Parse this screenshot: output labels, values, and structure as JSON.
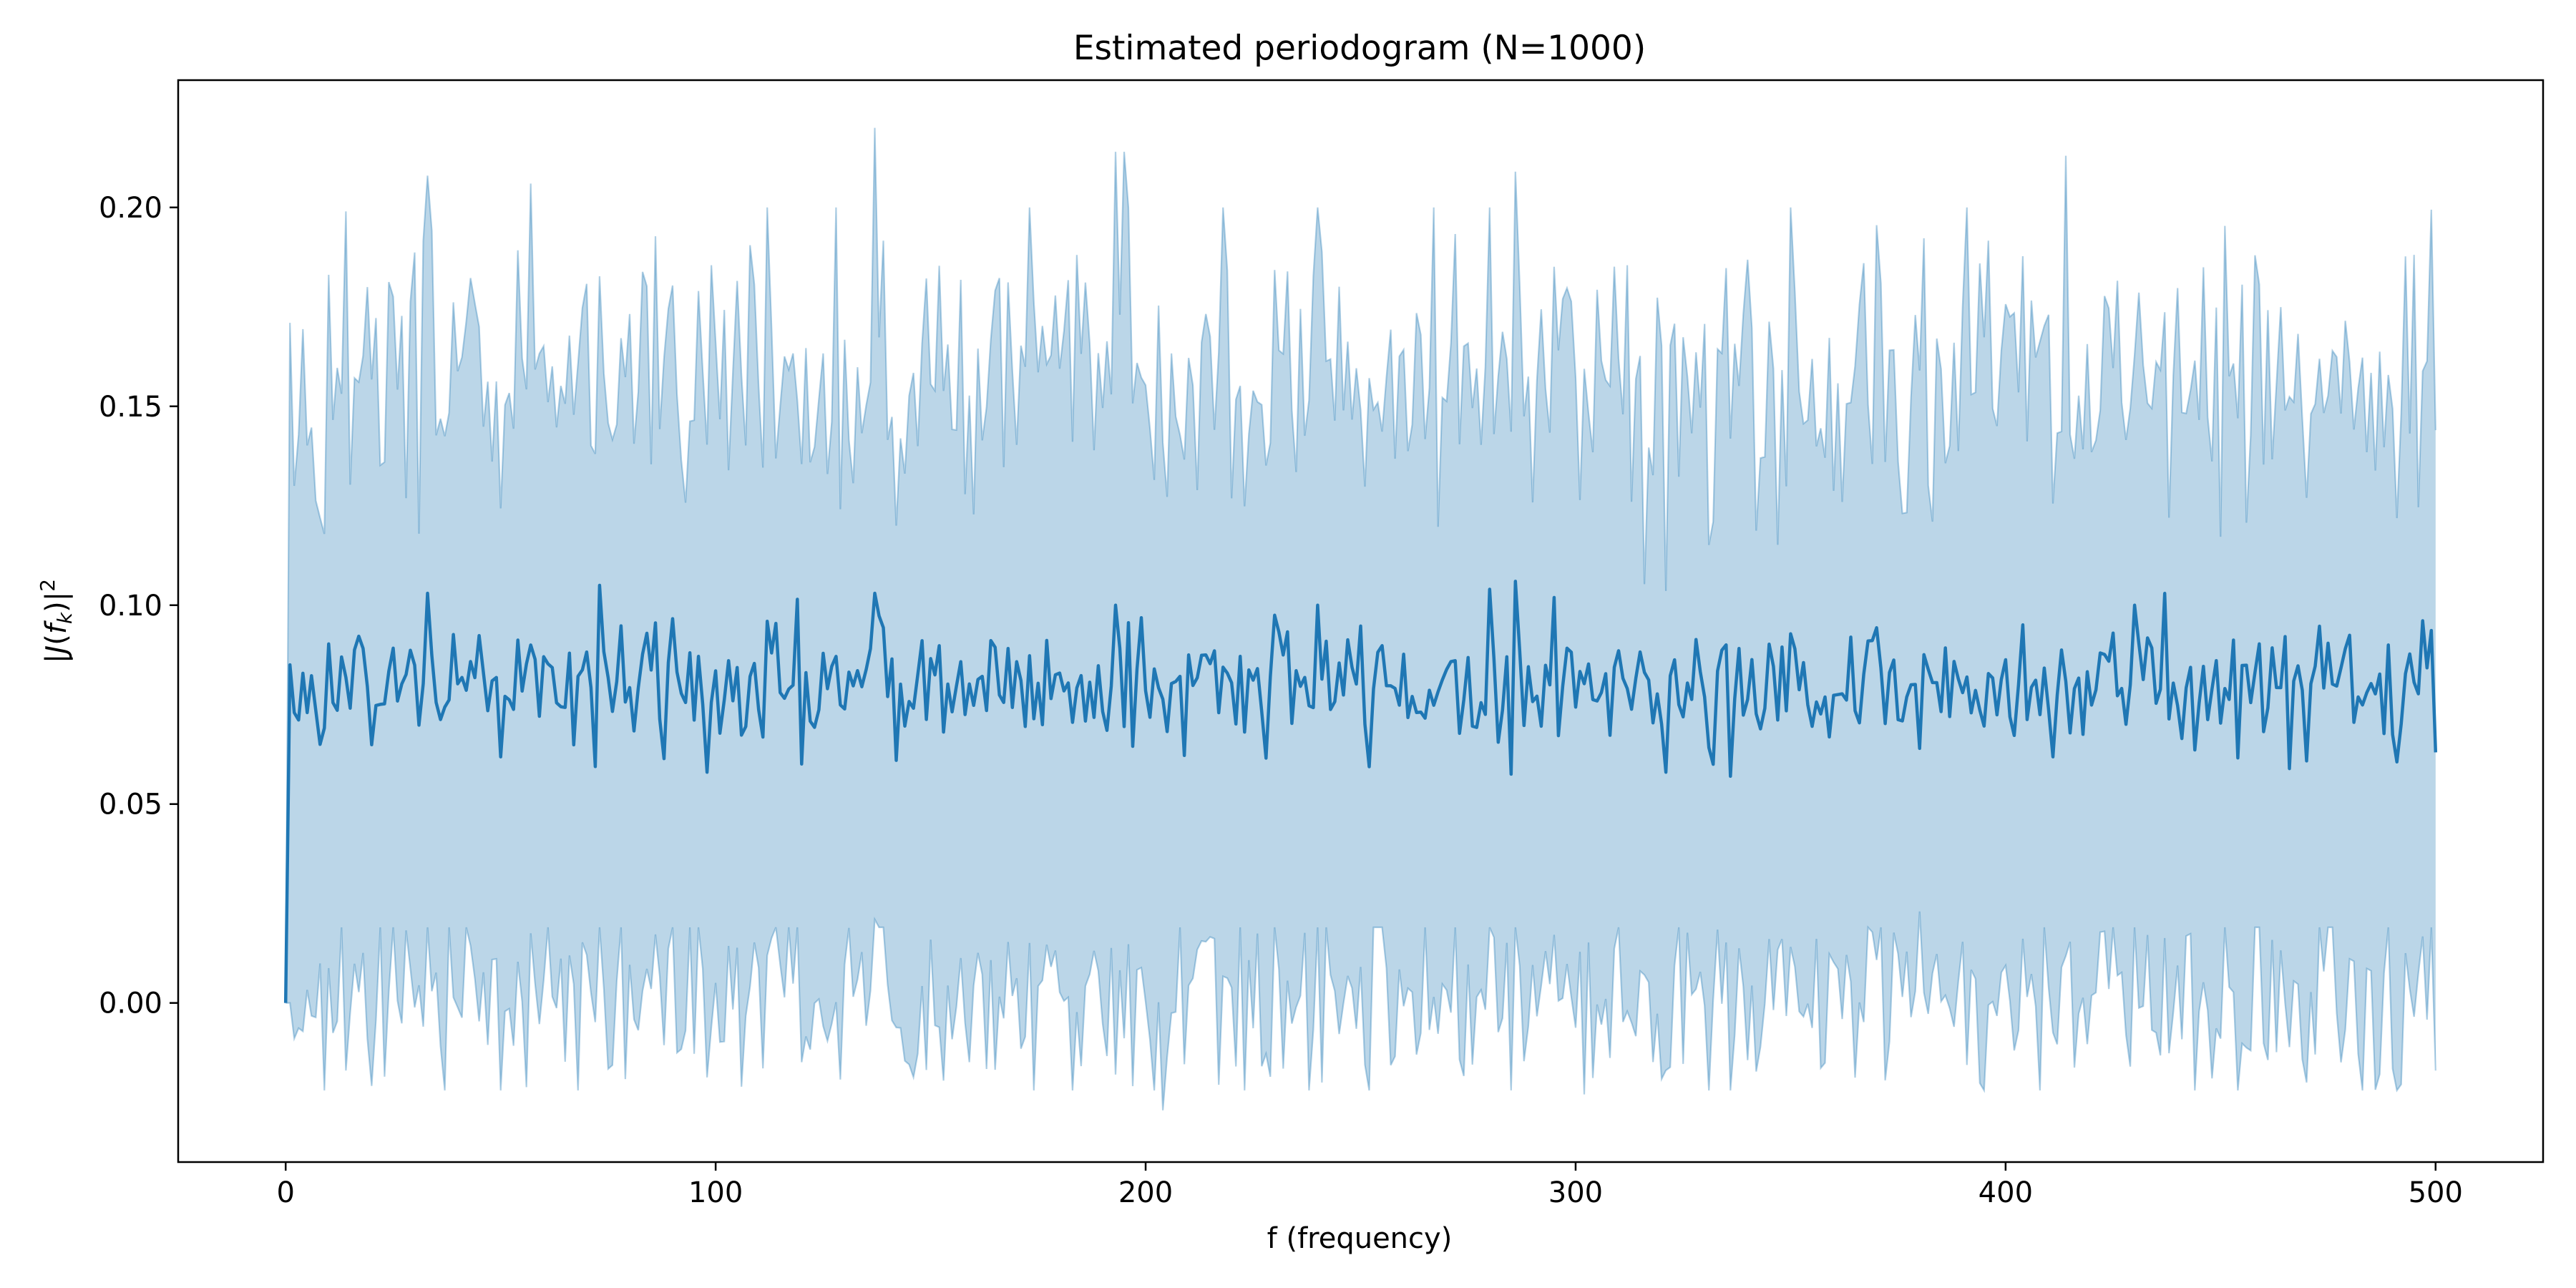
{
  "chart_data": {
    "type": "line",
    "title": "Estimated periodogram (N=1000)",
    "xlabel": "f (frequency)",
    "ylabel": "|J(f_k)|²",
    "ylabel_parts": {
      "prefix": "|",
      "italic_main": "J",
      "paren_open": "(",
      "italic_f": "f",
      "subscript": "k",
      "paren_close": ")|",
      "superscript": "2"
    },
    "xlim": [
      -25,
      525
    ],
    "ylim": [
      -0.04,
      0.232
    ],
    "x_ticks": [
      0,
      100,
      200,
      300,
      400,
      500
    ],
    "x_tick_labels": [
      "0",
      "100",
      "200",
      "300",
      "400",
      "500"
    ],
    "y_ticks": [
      0.0,
      0.05,
      0.1,
      0.15,
      0.2
    ],
    "y_tick_labels": [
      "0.00",
      "0.05",
      "0.10",
      "0.15",
      "0.20"
    ],
    "grid": false,
    "legend": "none",
    "x_range": [
      0,
      500
    ],
    "n_points": 501,
    "series": [
      {
        "kind": "line",
        "color": "#1f77b4",
        "description_mean": 0.08,
        "start_value": 0.0,
        "keypoints": [
          [
            0,
            0.0
          ],
          [
            1,
            0.085
          ],
          [
            2,
            0.073
          ],
          [
            5,
            0.073
          ],
          [
            8,
            0.065
          ],
          [
            33,
            0.103
          ],
          [
            57,
            0.09
          ],
          [
            73,
            0.105
          ],
          [
            98,
            0.058
          ],
          [
            137,
            0.103
          ],
          [
            142,
            0.061
          ],
          [
            193,
            0.1
          ],
          [
            240,
            0.1
          ],
          [
            286,
            0.106
          ],
          [
            332,
            0.06
          ],
          [
            380,
            0.064
          ],
          [
            430,
            0.1
          ],
          [
            500,
            0.063
          ]
        ]
      },
      {
        "kind": "band",
        "color": "#1f77b4",
        "opacity": 0.3,
        "upper_keypoints": [
          [
            0,
            0.0
          ],
          [
            1,
            0.171
          ],
          [
            2,
            0.13
          ],
          [
            8,
            0.122
          ],
          [
            14,
            0.199
          ],
          [
            33,
            0.208
          ],
          [
            57,
            0.206
          ],
          [
            137,
            0.22
          ],
          [
            142,
            0.12
          ],
          [
            193,
            0.214
          ],
          [
            195,
            0.214
          ],
          [
            286,
            0.209
          ],
          [
            332,
            0.121
          ],
          [
            383,
            0.121
          ],
          [
            414,
            0.213
          ],
          [
            470,
            0.127
          ],
          [
            500,
            0.144
          ]
        ],
        "lower_keypoints": [
          [
            0,
            0.0
          ],
          [
            1,
            0.0
          ],
          [
            14,
            -0.017
          ],
          [
            137,
            0.021
          ],
          [
            193,
            -0.018
          ],
          [
            204,
            -0.027
          ],
          [
            241,
            -0.02
          ],
          [
            302,
            -0.023
          ],
          [
            380,
            0.023
          ],
          [
            470,
            -0.02
          ],
          [
            500,
            -0.017
          ]
        ]
      }
    ]
  }
}
